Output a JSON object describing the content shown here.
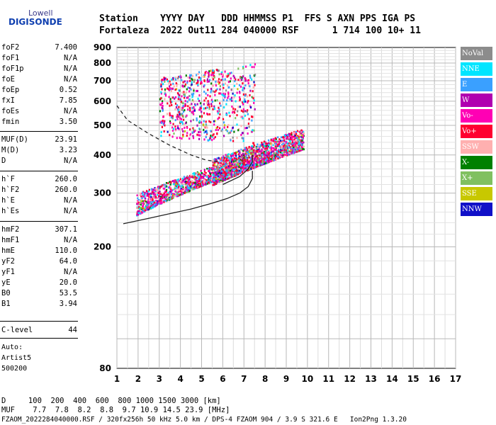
{
  "logo": {
    "line1": "Lowell",
    "line2": "DIGISONDE"
  },
  "header": {
    "line1": "Station    YYYY DAY   DDD HHMMSS P1  FFS S AXN PPS IGA PS",
    "line2": "Fortaleza  2022 Out11 284 040000 RSF      1 714 100 10+ 11"
  },
  "params": [
    {
      "name": "foF2",
      "value": "7.400"
    },
    {
      "name": "foF1",
      "value": "N/A"
    },
    {
      "name": "foF1p",
      "value": "N/A"
    },
    {
      "name": "foE",
      "value": "N/A"
    },
    {
      "name": "foEp",
      "value": "0.52"
    },
    {
      "name": "fxI",
      "value": "7.85"
    },
    {
      "name": "foEs",
      "value": "N/A"
    },
    {
      "name": "fmin",
      "value": "3.50"
    },
    {
      "name": "MUF(D)",
      "value": "23.91"
    },
    {
      "name": "M(D)",
      "value": "3.23"
    },
    {
      "name": "D",
      "value": "N/A"
    },
    {
      "name": "h`F",
      "value": "260.0"
    },
    {
      "name": "h`F2",
      "value": "260.0"
    },
    {
      "name": "h`E",
      "value": "N/A"
    },
    {
      "name": "h`Es",
      "value": "N/A"
    },
    {
      "name": "hmF2",
      "value": "307.1"
    },
    {
      "name": "hmF1",
      "value": "N/A"
    },
    {
      "name": "hmE",
      "value": "110.0"
    },
    {
      "name": "yF2",
      "value": "64.0"
    },
    {
      "name": "yF1",
      "value": "N/A"
    },
    {
      "name": "yE",
      "value": "20.0"
    },
    {
      "name": "B0",
      "value": "53.5"
    },
    {
      "name": "B1",
      "value": "3.94"
    },
    {
      "name": "C-level",
      "value": "44"
    }
  ],
  "scaling": {
    "line1": "Auto:",
    "line2": "Artist5",
    "line3": "500200"
  },
  "footer": {
    "d_row": "D     100  200  400  600  800 1000 1500 3000 [km]",
    "muf_row": "MUF    7.7  7.8  8.2  8.8  9.7 10.9 14.5 23.9 [MHz]",
    "file_row": "FZAOM_2022284040000.RSF / 320fx256h 50 kHz 5.0 km / DPS-4 FZAOM 904 / 3.9 S 321.6 E   Ion2Png 1.3.20"
  },
  "legend": [
    {
      "label": "NoVal",
      "color": "#8c8c8c"
    },
    {
      "label": "NNE",
      "color": "#00e5ff"
    },
    {
      "label": "E",
      "color": "#3aa0ff"
    },
    {
      "label": "W",
      "color": "#b000b0"
    },
    {
      "label": "Vo-",
      "color": "#ff00b4"
    },
    {
      "label": "Vo+",
      "color": "#ff0030"
    },
    {
      "label": "SSW",
      "color": "#ffb0b0"
    },
    {
      "label": "X-",
      "color": "#008000"
    },
    {
      "label": "X+",
      "color": "#80c060"
    },
    {
      "label": "SSE",
      "color": "#c8c800"
    },
    {
      "label": "NNW",
      "color": "#1010c8"
    }
  ],
  "chart_data": {
    "type": "scatter",
    "title": "",
    "xlabel": "",
    "ylabel": "",
    "xlim": [
      1,
      17
    ],
    "ylim": [
      80,
      900
    ],
    "yscale": "log",
    "xticks": [
      1,
      2,
      3,
      4,
      5,
      6,
      7,
      8,
      9,
      10,
      11,
      12,
      13,
      14,
      15,
      16,
      17
    ],
    "yticks": [
      80,
      200,
      300,
      400,
      500,
      600,
      700,
      800,
      900
    ],
    "grid": true,
    "legend_placement": "right",
    "trace_clusters": [
      {
        "name": "o-trace main",
        "x_range": [
          1.9,
          8.2
        ],
        "h_lower": [
          255,
          385
        ],
        "h_upper": [
          300,
          420
        ]
      },
      {
        "name": "x-trace",
        "x_range": [
          5.5,
          9.8
        ],
        "h_lower": [
          320,
          420
        ],
        "h_upper": [
          390,
          490
        ]
      },
      {
        "name": "spread upper",
        "x_range": [
          3.0,
          7.5
        ],
        "h_lower": [
          460,
          440
        ],
        "h_upper": [
          720,
          800
        ]
      }
    ],
    "profile_line": {
      "x": [
        1.3,
        2.5,
        3.5,
        4.5,
        5.5,
        6.2,
        6.8,
        7.2,
        7.4,
        7.4
      ],
      "y": [
        238,
        248,
        257,
        266,
        278,
        288,
        300,
        315,
        335,
        355
      ]
    },
    "profile_solid_upper": {
      "x": [
        6.0,
        6.8,
        7.2,
        7.4,
        7.4
      ],
      "y": [
        320,
        340,
        360,
        380,
        400
      ]
    },
    "profile_dashed": {
      "x": [
        1.0,
        1.5,
        2.5,
        3.5,
        4.5,
        5.2,
        5.8
      ],
      "y": [
        580,
        520,
        470,
        430,
        400,
        385,
        380
      ]
    }
  }
}
